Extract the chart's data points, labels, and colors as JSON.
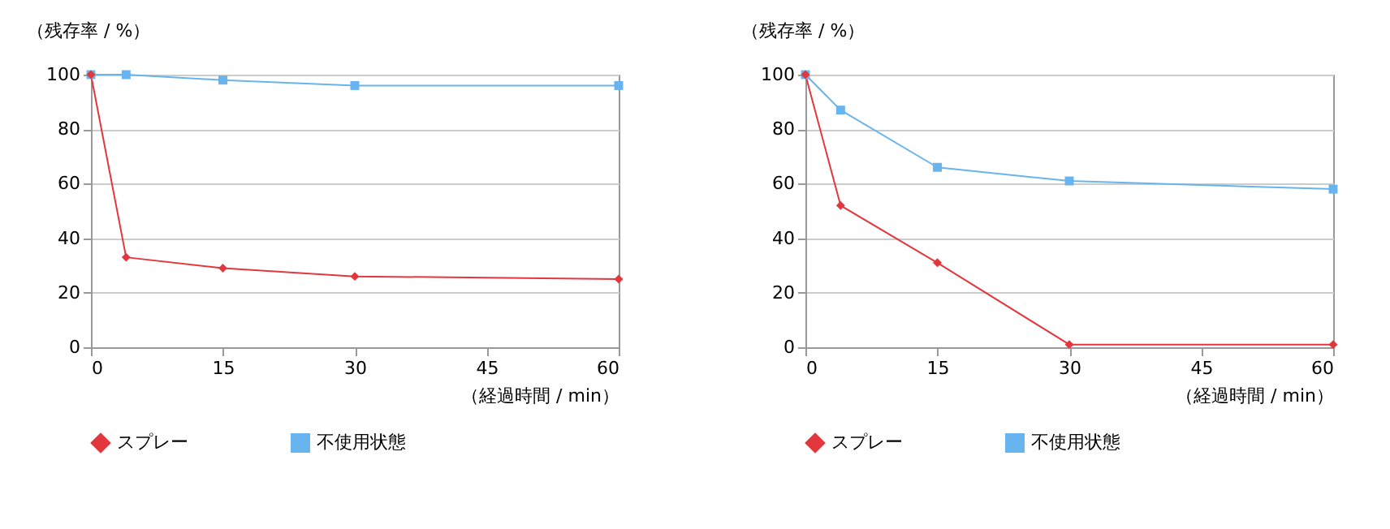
{
  "chart_data": [
    {
      "type": "line",
      "ylabel": "（残存率 / %）",
      "xlabel": "（経過時間 / min）",
      "x": [
        0,
        4,
        15,
        30,
        60
      ],
      "xlim": [
        0,
        60
      ],
      "xticks": [
        0,
        15,
        30,
        45,
        60
      ],
      "ylim": [
        0,
        100
      ],
      "yticks": [
        0,
        20,
        40,
        60,
        80,
        100
      ],
      "grid": "y",
      "legend": "bottom",
      "series": [
        {
          "name": "スプレー",
          "color": "#e2373c",
          "marker": "diamond",
          "values": [
            100,
            33,
            29,
            26,
            25
          ]
        },
        {
          "name": "不使用状態",
          "color": "#68b4ee",
          "marker": "square",
          "values": [
            100,
            100,
            98,
            96,
            96
          ]
        }
      ]
    },
    {
      "type": "line",
      "ylabel": "（残存率 / %）",
      "xlabel": "（経過時間 / min）",
      "x": [
        0,
        4,
        15,
        30,
        60
      ],
      "xlim": [
        0,
        60
      ],
      "xticks": [
        0,
        15,
        30,
        45,
        60
      ],
      "ylim": [
        0,
        100
      ],
      "yticks": [
        0,
        20,
        40,
        60,
        80,
        100
      ],
      "grid": "y",
      "legend": "bottom",
      "series": [
        {
          "name": "スプレー",
          "color": "#e2373c",
          "marker": "diamond",
          "values": [
            100,
            52,
            31,
            1,
            1
          ]
        },
        {
          "name": "不使用状態",
          "color": "#68b4ee",
          "marker": "square",
          "values": [
            100,
            87,
            66,
            61,
            58
          ]
        }
      ]
    }
  ]
}
